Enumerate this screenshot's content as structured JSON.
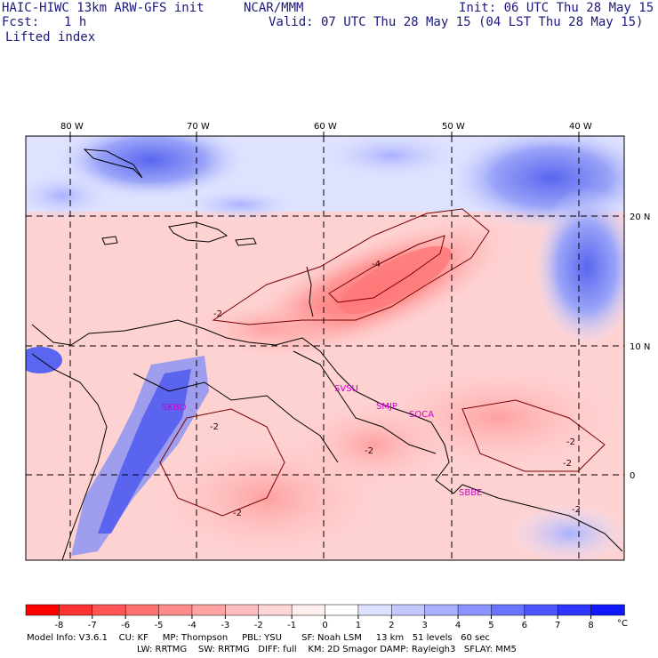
{
  "header": {
    "model_title": "HAIC-HIWC 13km ARW-GFS init",
    "institution": "NCAR/MMM",
    "init_time": "Init: 06 UTC Thu 28 May 15",
    "forecast_label": "Fcst:",
    "forecast_value": "1 h",
    "valid_time": "Valid: 07 UTC Thu 28 May 15 (04 LST Thu 28 May 15)",
    "field_name": "Lifted index"
  },
  "map": {
    "lon_labels": [
      "80 W",
      "70 W",
      "60 W",
      "50 W",
      "40 W"
    ],
    "lat_labels": [
      "20 N",
      "10 N",
      "0"
    ],
    "stations": [
      "SKBO",
      "SVSU",
      "SMJP",
      "SOCA",
      "SBBE"
    ],
    "contour_labels": [
      "-4",
      "-2",
      "-2",
      "-2",
      "-2",
      "-2",
      "-2",
      "-2"
    ]
  },
  "colorbar": {
    "ticks": [
      "-8",
      "-7",
      "-6",
      "-5",
      "-4",
      "-3",
      "-2",
      "-1",
      "0",
      "1",
      "2",
      "3",
      "4",
      "5",
      "6",
      "7",
      "8"
    ],
    "unit": "°C",
    "colors": [
      "#ff0000",
      "#ff3333",
      "#ff5555",
      "#ff7070",
      "#ff8a8a",
      "#ffa3a3",
      "#ffbdbd",
      "#ffd6d6",
      "#ffeeee",
      "#ffffff",
      "#dde0ff",
      "#c3c8ff",
      "#a8b0ff",
      "#8a93ff",
      "#6b74ff",
      "#4d55ff",
      "#2e36ff",
      "#1018ff"
    ]
  },
  "footer": {
    "line1": "Model Info: V3.6.1    CU: KF     MP: Thompson     PBL: YSU       SF: Noah LSM     13 km   51 levels   60 sec",
    "line2": "LW: RRTMG    SW: RRTMG   DIFF: full    KM: 2D Smagor DAMP: Rayleigh3   SFLAY: MM5"
  }
}
